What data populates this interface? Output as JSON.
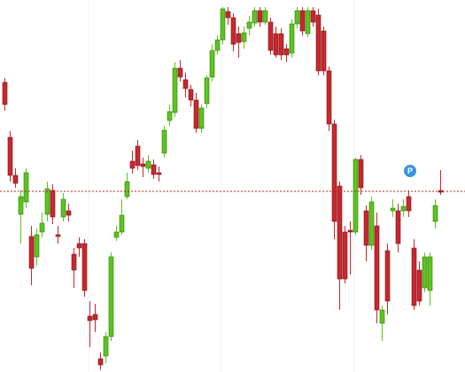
{
  "chart_data": {
    "type": "candlestick",
    "categories": [
      null,
      null,
      null,
      null,
      null,
      null,
      null,
      null,
      null,
      null,
      null,
      null,
      null,
      null,
      null,
      null,
      null,
      null,
      null,
      null,
      null,
      null,
      null,
      null,
      null,
      null,
      null,
      null,
      null,
      null,
      null,
      null,
      null,
      null,
      null,
      null,
      null,
      null,
      null,
      null,
      null,
      null,
      null,
      null,
      null,
      null,
      null,
      null,
      null,
      null,
      null,
      null,
      null,
      null,
      null,
      null,
      null,
      null,
      null,
      null,
      null,
      null,
      null,
      null,
      null,
      null,
      null,
      null,
      null,
      null,
      null,
      null,
      null,
      null,
      null,
      null,
      null,
      null,
      null,
      null,
      null,
      null,
      null
    ],
    "open": [
      327,
      265,
      222,
      178,
      192,
      153,
      130,
      158,
      178,
      205,
      155,
      175,
      182,
      133,
      145,
      145,
      63,
      65,
      15,
      18,
      40,
      152,
      158,
      198,
      238,
      255,
      235,
      230,
      234,
      225,
      247,
      284,
      293,
      343,
      330,
      319,
      307,
      275,
      303,
      333,
      363,
      375,
      407,
      400,
      382,
      373,
      388,
      394,
      408,
      395,
      395,
      382,
      382,
      365,
      360,
      393,
      408,
      382,
      408,
      403,
      385,
      340,
      280,
      210,
      158,
      160,
      158,
      240,
      182,
      143,
      165,
      55,
      137,
      182,
      182,
      182,
      198,
      140,
      115,
      95,
      92,
      170,
      205
    ],
    "high": [
      332,
      272,
      230,
      206,
      230,
      165,
      162,
      180,
      215,
      212,
      165,
      202,
      190,
      140,
      152,
      150,
      80,
      77,
      22,
      45,
      135,
      165,
      195,
      225,
      250,
      262,
      242,
      245,
      240,
      232,
      278,
      302,
      350,
      352,
      338,
      324,
      315,
      302,
      335,
      370,
      380,
      412,
      412,
      405,
      390,
      390,
      402,
      412,
      412,
      412,
      400,
      390,
      388,
      370,
      398,
      412,
      412,
      412,
      412,
      410,
      390,
      345,
      285,
      215,
      165,
      170,
      242,
      245,
      188,
      198,
      180,
      75,
      145,
      195,
      190,
      195,
      205,
      150,
      125,
      135,
      135,
      195,
      228
    ],
    "low": [
      295,
      215,
      208,
      145,
      185,
      98,
      120,
      152,
      170,
      167,
      145,
      170,
      170,
      95,
      130,
      85,
      28,
      45,
      2,
      10,
      35,
      148,
      155,
      195,
      224,
      228,
      220,
      225,
      218,
      215,
      242,
      278,
      288,
      328,
      310,
      300,
      270,
      270,
      298,
      328,
      358,
      370,
      392,
      362,
      355,
      365,
      380,
      390,
      390,
      392,
      358,
      355,
      352,
      350,
      355,
      388,
      380,
      378,
      390,
      335,
      335,
      272,
      150,
      70,
      100,
      110,
      155,
      200,
      125,
      138,
      55,
      35,
      65,
      175,
      135,
      175,
      175,
      70,
      75,
      90,
      75,
      162,
      200
    ],
    "close": [
      302,
      222,
      213,
      198,
      225,
      117,
      155,
      168,
      207,
      175,
      153,
      195,
      177,
      115,
      140,
      92,
      58,
      59,
      8,
      40,
      130,
      158,
      177,
      215,
      230,
      233,
      232,
      238,
      223,
      223,
      273,
      294,
      343,
      333,
      320,
      307,
      275,
      298,
      332,
      363,
      375,
      410,
      400,
      370,
      372,
      383,
      395,
      408,
      395,
      408,
      363,
      358,
      358,
      358,
      393,
      408,
      385,
      408,
      395,
      340,
      340,
      280,
      170,
      105,
      105,
      158,
      240,
      208,
      143,
      192,
      70,
      70,
      80,
      185,
      145,
      187,
      182,
      75,
      80,
      130,
      130,
      188,
      203
    ],
    "ylim": [
      0,
      420
    ],
    "up_color": "#5cc41e",
    "down_color": "#c8282e",
    "reference_line": 204,
    "reference_color": "#b5281f",
    "marker_label": "P"
  }
}
